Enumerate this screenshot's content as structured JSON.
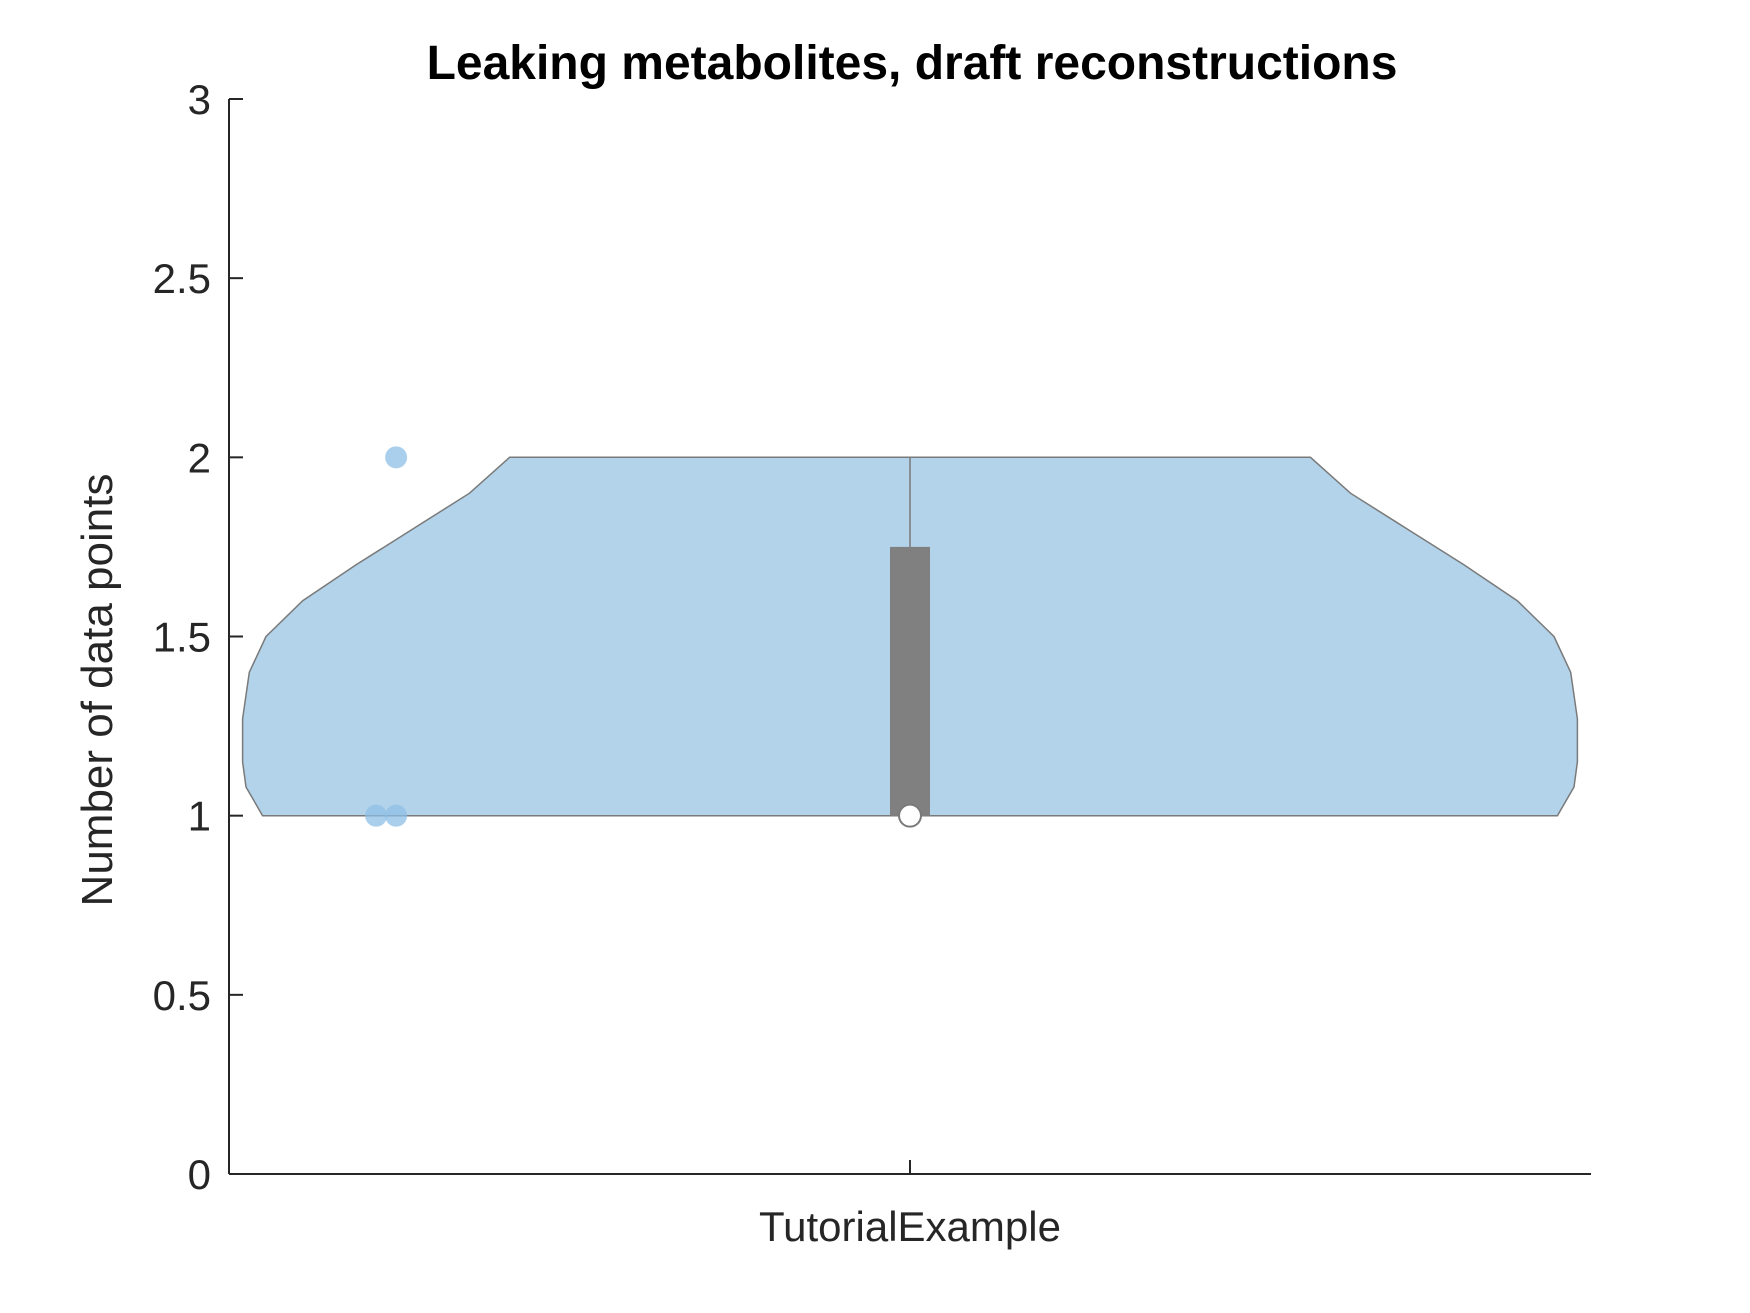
{
  "chart_data": {
    "type": "violin",
    "title": "Leaking metabolites, draft reconstructions",
    "xlabel": "",
    "ylabel": "Number of data points",
    "categories": [
      "TutorialExample"
    ],
    "ylim": [
      0,
      3
    ],
    "yticks": [
      0,
      0.5,
      1,
      1.5,
      2,
      2.5,
      3
    ],
    "ytick_labels": [
      "0",
      "0.5",
      "1",
      "1.5",
      "2",
      "2.5",
      "3"
    ],
    "grid": false,
    "legend": "none",
    "series": [
      {
        "category": "TutorialExample",
        "points": [
          1,
          1,
          2
        ],
        "median": 1,
        "q1": 1,
        "q3": 1.75,
        "whisker_low": 1,
        "whisker_high": 2,
        "density_half_width": [
          [
            1.0,
            0.97
          ],
          [
            1.08,
            0.995
          ],
          [
            1.15,
            1.0
          ],
          [
            1.27,
            1.0
          ],
          [
            1.4,
            0.99
          ],
          [
            1.5,
            0.965
          ],
          [
            1.6,
            0.91
          ],
          [
            1.7,
            0.83
          ],
          [
            1.8,
            0.745
          ],
          [
            1.9,
            0.66
          ],
          [
            2.0,
            0.6
          ]
        ]
      }
    ],
    "colors": {
      "violin_fill": "#b2d3ea",
      "violin_edge": "#7a7a7a",
      "points": "#8dbfe6",
      "box": "#808080",
      "median_marker": "#ffffff",
      "axis": "#262626"
    }
  }
}
